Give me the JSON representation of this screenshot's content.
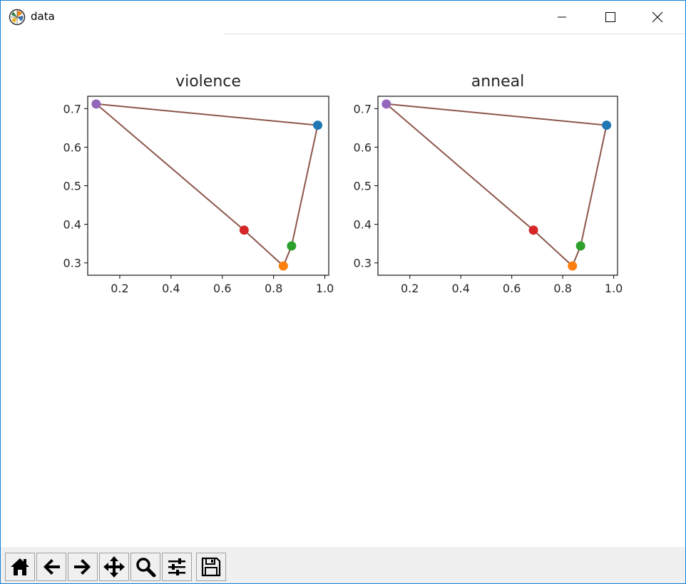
{
  "window": {
    "title": "data",
    "icon": "matplotlib-logo-icon",
    "controls": [
      "minimize-icon",
      "maximize-icon",
      "close-icon"
    ]
  },
  "toolbar": {
    "buttons": [
      {
        "icon": "home-icon"
      },
      {
        "icon": "back-arrow-icon"
      },
      {
        "icon": "forward-arrow-icon"
      },
      {
        "icon": "pan-move-icon"
      },
      {
        "icon": "zoom-magnifier-icon"
      },
      {
        "icon": "configure-subplots-icon"
      },
      {
        "icon": "save-floppy-icon"
      }
    ]
  },
  "chart_data": [
    {
      "type": "scatter",
      "title": "violence",
      "xlim": [
        0.075,
        1.015
      ],
      "ylim": [
        0.268,
        0.732
      ],
      "xticks": [
        "0.2",
        "0.4",
        "0.6",
        "0.8",
        "1.0"
      ],
      "xtick_values": [
        0.2,
        0.4,
        0.6,
        0.8,
        1.0
      ],
      "yticks": [
        "0.3",
        "0.4",
        "0.5",
        "0.6",
        "0.7"
      ],
      "ytick_values": [
        0.3,
        0.4,
        0.5,
        0.6,
        0.7
      ],
      "points": [
        {
          "x": 0.972,
          "y": 0.657,
          "color": "#1f77b4"
        },
        {
          "x": 0.838,
          "y": 0.292,
          "color": "#ff7f0e"
        },
        {
          "x": 0.87,
          "y": 0.344,
          "color": "#2ca02c"
        },
        {
          "x": 0.685,
          "y": 0.385,
          "color": "#d62728"
        },
        {
          "x": 0.108,
          "y": 0.712,
          "color": "#9467bd"
        }
      ],
      "path": {
        "color": "#8c564b",
        "order": [
          4,
          0,
          2,
          1,
          3,
          4
        ]
      }
    },
    {
      "type": "scatter",
      "title": "anneal",
      "xlim": [
        0.075,
        1.015
      ],
      "ylim": [
        0.268,
        0.732
      ],
      "xticks": [
        "0.2",
        "0.4",
        "0.6",
        "0.8",
        "1.0"
      ],
      "xtick_values": [
        0.2,
        0.4,
        0.6,
        0.8,
        1.0
      ],
      "yticks": [
        "0.3",
        "0.4",
        "0.5",
        "0.6",
        "0.7"
      ],
      "ytick_values": [
        0.3,
        0.4,
        0.5,
        0.6,
        0.7
      ],
      "points": [
        {
          "x": 0.972,
          "y": 0.657,
          "color": "#1f77b4"
        },
        {
          "x": 0.838,
          "y": 0.292,
          "color": "#ff7f0e"
        },
        {
          "x": 0.87,
          "y": 0.344,
          "color": "#2ca02c"
        },
        {
          "x": 0.685,
          "y": 0.385,
          "color": "#d62728"
        },
        {
          "x": 0.108,
          "y": 0.712,
          "color": "#9467bd"
        }
      ],
      "path": {
        "color": "#8c564b",
        "order": [
          4,
          0,
          2,
          1,
          3,
          4
        ]
      }
    }
  ]
}
